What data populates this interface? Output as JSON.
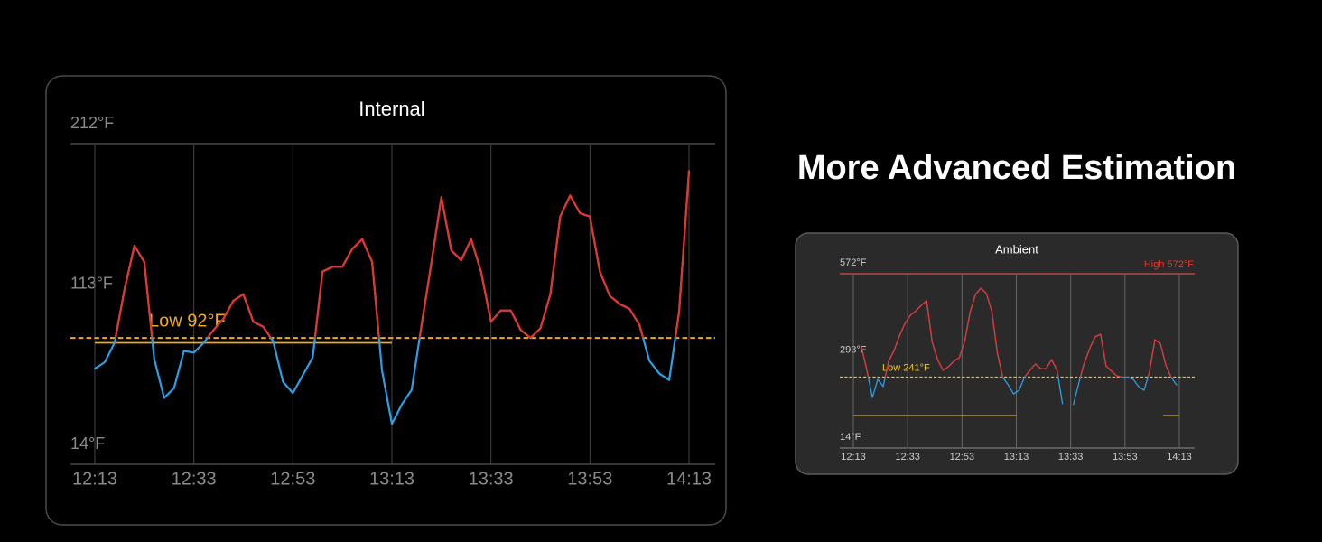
{
  "headline": "More Advanced Estimation",
  "chart_data": [
    {
      "type": "line",
      "title": "Internal",
      "xlim": [
        733,
        853
      ],
      "xticks": [
        {
          "value": 733,
          "label": "12:13"
        },
        {
          "value": 753,
          "label": "12:33"
        },
        {
          "value": 773,
          "label": "12:53"
        },
        {
          "value": 793,
          "label": "13:13"
        },
        {
          "value": 813,
          "label": "13:33"
        },
        {
          "value": 833,
          "label": "13:53"
        },
        {
          "value": 853,
          "label": "14:13"
        }
      ],
      "ylim": [
        14,
        212
      ],
      "yticks": [
        {
          "value": 14,
          "label": "14°F"
        },
        {
          "value": 113,
          "label": "113°F"
        },
        {
          "value": 212,
          "label": "212°F"
        }
      ],
      "grid": "x",
      "x": [
        733,
        735,
        737,
        739,
        741,
        743,
        745,
        747,
        749,
        751,
        753,
        755,
        757,
        759,
        761,
        763,
        765,
        767,
        769,
        771,
        773,
        775,
        777,
        779,
        781,
        783,
        785,
        787,
        789,
        791,
        793,
        795,
        797,
        799,
        801,
        803,
        805,
        807,
        809,
        811,
        813,
        815,
        817,
        819,
        821,
        823,
        825,
        827,
        829,
        831,
        833,
        835,
        837,
        839,
        841,
        843,
        845,
        847,
        849,
        851,
        853
      ],
      "series": [
        {
          "color": "#2b9fe6",
          "color_above": "#e8322c",
          "values": [
            73,
            77,
            89,
            122,
            149,
            139,
            79,
            55,
            61,
            84,
            83,
            89,
            97,
            104,
            115,
            119,
            102,
            99,
            90,
            65,
            58,
            69,
            80,
            133,
            136,
            136,
            147,
            153,
            139,
            72,
            39,
            51,
            60,
            100,
            139,
            179,
            146,
            140,
            153,
            133,
            102,
            109,
            109,
            97,
            92,
            98,
            119,
            167,
            180,
            169,
            167,
            133,
            118,
            113,
            110,
            100,
            78,
            70,
            66,
            108,
            195
          ]
        }
      ],
      "annotations": [
        {
          "label": "Low 92°F",
          "value": 92,
          "color": "#f0a81c"
        }
      ],
      "low_spans": [
        {
          "x": [
            733,
            793
          ],
          "y": 89,
          "color": "#f0a81c"
        }
      ]
    },
    {
      "type": "line",
      "title": "Ambient",
      "xlim": [
        733,
        853
      ],
      "xticks": [
        {
          "value": 733,
          "label": "12:13"
        },
        {
          "value": 753,
          "label": "12:33"
        },
        {
          "value": 773,
          "label": "12:53"
        },
        {
          "value": 793,
          "label": "13:13"
        },
        {
          "value": 813,
          "label": "13:33"
        },
        {
          "value": 833,
          "label": "13:53"
        },
        {
          "value": 853,
          "label": "14:13"
        }
      ],
      "ylim": [
        14,
        572
      ],
      "yticks": [
        {
          "value": 14,
          "label": "14°F"
        },
        {
          "value": 293,
          "label": "293°F"
        },
        {
          "value": 572,
          "label": "572°F"
        }
      ],
      "grid": "x",
      "x": [
        736,
        738,
        740,
        742,
        744,
        746,
        748,
        750,
        752,
        754,
        756,
        758,
        760,
        762,
        764,
        766,
        768,
        770,
        772,
        774,
        776,
        778,
        780,
        782,
        784,
        786,
        788,
        790,
        792,
        794,
        796,
        798,
        800,
        802,
        804,
        806,
        808,
        810,
        812,
        814,
        816,
        818,
        820,
        822,
        824,
        826,
        828,
        830,
        832,
        834,
        836,
        838,
        840,
        842,
        844,
        846,
        848,
        850,
        852
      ],
      "series": [
        {
          "color": "#2b9fe6",
          "color_above": "#e8322c",
          "values": [
            338,
            263,
            176,
            234,
            211,
            292,
            326,
            373,
            413,
            439,
            453,
            471,
            485,
            355,
            297,
            263,
            274,
            292,
            303,
            355,
            451,
            506,
            526,
            508,
            451,
            320,
            240,
            216,
            187,
            199,
            240,
            263,
            283,
            268,
            268,
            297,
            263,
            156,
            null,
            153,
            222,
            286,
            332,
            370,
            378,
            277,
            260,
            245,
            240,
            240,
            234,
            211,
            199,
            257,
            361,
            349,
            280,
            240,
            216
          ]
        }
      ],
      "annotations": [
        {
          "label": "High 572°F",
          "value": 572,
          "color": "#e8322c"
        },
        {
          "label": "Low 241°F",
          "value": 241,
          "color": "#f0c81c"
        }
      ],
      "low_spans": [
        {
          "x": [
            733,
            793
          ],
          "y": 118,
          "color": "#f0c81c"
        },
        {
          "x": [
            847,
            853
          ],
          "y": 118,
          "color": "#f0c81c"
        }
      ]
    }
  ]
}
